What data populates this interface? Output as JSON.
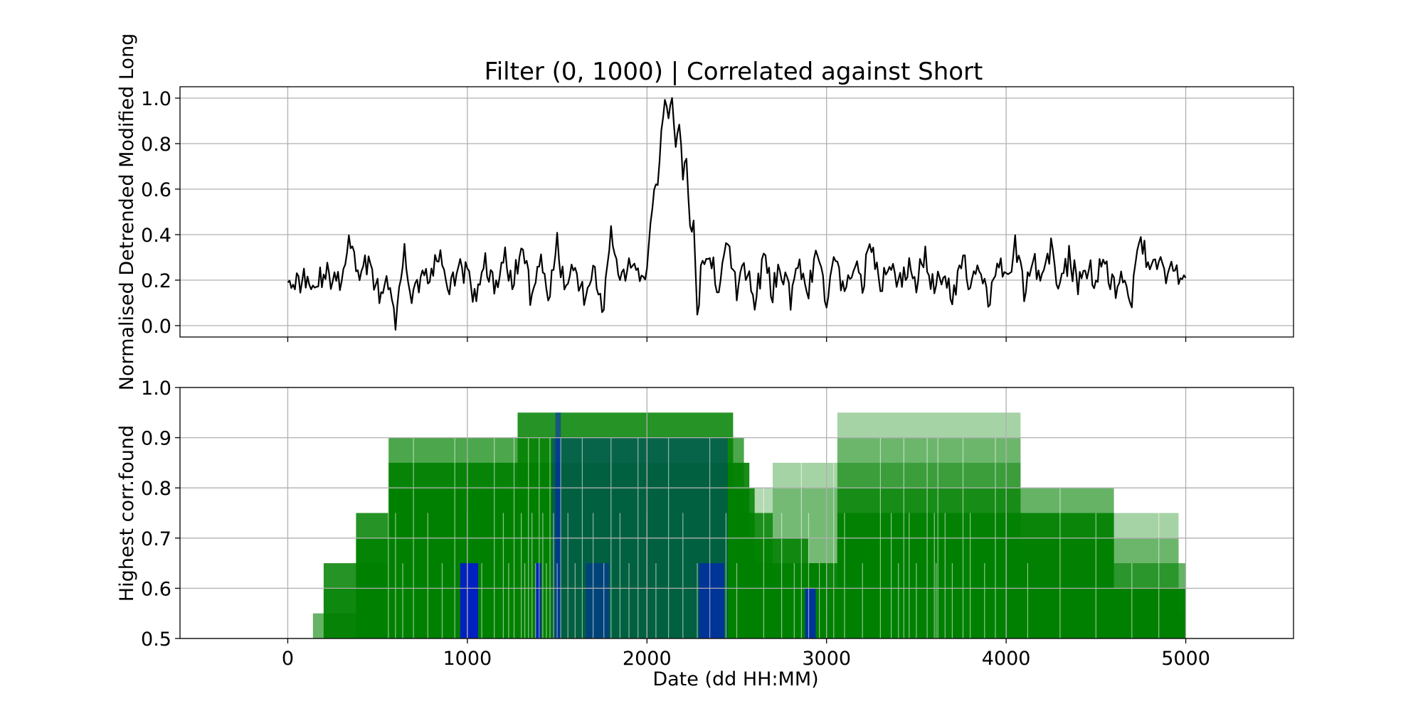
{
  "chart_data": [
    {
      "type": "line",
      "title": "Filter (0, 1000) | Correlated against Short",
      "ylabel": "Normalised Detrended Modified Long",
      "xlabel": "",
      "xlim": [
        -600,
        5600
      ],
      "ylim": [
        -0.05,
        1.05
      ],
      "xticks": [
        0,
        1000,
        2000,
        3000,
        4000,
        5000
      ],
      "xtick_labels": [
        "",
        "",
        "",
        "",
        "",
        ""
      ],
      "yticks": [
        0.0,
        0.2,
        0.4,
        0.6,
        0.8,
        1.0
      ],
      "ytick_labels": [
        "0.0",
        "0.2",
        "0.4",
        "0.6",
        "0.8",
        "1.0"
      ],
      "grid": true,
      "line_color": "#000000",
      "series": [
        {
          "values_per_step": 10,
          "x": [
            0,
            50,
            100,
            150,
            200,
            250,
            300,
            350,
            400,
            450,
            500,
            550,
            600,
            650,
            700,
            750,
            800,
            850,
            900,
            950,
            1000,
            1050,
            1100,
            1150,
            1200,
            1250,
            1300,
            1350,
            1400,
            1450,
            1500,
            1550,
            1600,
            1650,
            1700,
            1750,
            1800,
            1850,
            1900,
            1950,
            2000,
            2020,
            2040,
            2060,
            2080,
            2100,
            2120,
            2140,
            2160,
            2180,
            2200,
            2220,
            2240,
            2260,
            2280,
            2300,
            2350,
            2400,
            2450,
            2500,
            2550,
            2600,
            2650,
            2700,
            2750,
            2800,
            2850,
            2900,
            2950,
            3000,
            3050,
            3100,
            3150,
            3200,
            3250,
            3300,
            3350,
            3400,
            3450,
            3500,
            3550,
            3600,
            3650,
            3700,
            3750,
            3800,
            3850,
            3900,
            3950,
            4000,
            4050,
            4100,
            4150,
            4200,
            4250,
            4300,
            4350,
            4400,
            4450,
            4500,
            4550,
            4600,
            4650,
            4700,
            4750,
            4800,
            4850,
            4900,
            4950,
            5000
          ],
          "y": [
            0.25,
            0.18,
            0.22,
            0.16,
            0.24,
            0.2,
            0.18,
            0.38,
            0.22,
            0.3,
            0.15,
            0.18,
            0.02,
            0.3,
            0.12,
            0.25,
            0.2,
            0.34,
            0.12,
            0.28,
            0.22,
            0.1,
            0.3,
            0.15,
            0.32,
            0.18,
            0.34,
            0.15,
            0.3,
            0.12,
            0.35,
            0.15,
            0.28,
            0.1,
            0.3,
            0.05,
            0.38,
            0.15,
            0.3,
            0.22,
            0.24,
            0.4,
            0.6,
            0.63,
            0.85,
            0.98,
            0.92,
            1.0,
            0.8,
            0.9,
            0.65,
            0.75,
            0.4,
            0.46,
            0.06,
            0.22,
            0.3,
            0.18,
            0.38,
            0.15,
            0.24,
            0.12,
            0.28,
            0.16,
            0.25,
            0.12,
            0.28,
            0.15,
            0.32,
            0.1,
            0.3,
            0.15,
            0.28,
            0.2,
            0.36,
            0.14,
            0.3,
            0.18,
            0.25,
            0.2,
            0.32,
            0.15,
            0.26,
            0.12,
            0.3,
            0.18,
            0.24,
            0.1,
            0.28,
            0.18,
            0.36,
            0.15,
            0.28,
            0.2,
            0.35,
            0.16,
            0.3,
            0.18,
            0.26,
            0.2,
            0.3,
            0.16,
            0.24,
            0.12,
            0.39,
            0.2,
            0.3,
            0.22,
            0.24,
            0.21
          ]
        }
      ]
    },
    {
      "type": "bar",
      "title": "",
      "ylabel": "Highest corr.found",
      "xlabel": "Date (dd HH:MM)",
      "xlim": [
        -600,
        5600
      ],
      "ylim": [
        0.5,
        1.0
      ],
      "xticks": [
        0,
        1000,
        2000,
        3000,
        4000,
        5000
      ],
      "xtick_labels": [
        "0",
        "1000",
        "2000",
        "3000",
        "4000",
        "5000"
      ],
      "yticks": [
        0.5,
        0.6,
        0.7,
        0.8,
        0.9,
        1.0
      ],
      "ytick_labels": [
        "0.5",
        "0.6",
        "0.7",
        "0.8",
        "0.9",
        "1.0"
      ],
      "grid": true,
      "colors": {
        "green": "#008000",
        "blue": "#0000ff"
      },
      "bars": [
        {
          "x0": 3060,
          "x1": 4080,
          "y": 0.95,
          "color": "green",
          "alpha": 0.35
        },
        {
          "x0": 3060,
          "x1": 4080,
          "y": 0.9,
          "color": "green",
          "alpha": 0.35
        },
        {
          "x0": 3060,
          "x1": 4080,
          "y": 0.85,
          "color": "green",
          "alpha": 0.45
        },
        {
          "x0": 2700,
          "x1": 3060,
          "y": 0.85,
          "color": "green",
          "alpha": 0.35
        },
        {
          "x0": 2600,
          "x1": 3060,
          "y": 0.8,
          "color": "green",
          "alpha": 0.3
        },
        {
          "x0": 3060,
          "x1": 4600,
          "y": 0.8,
          "color": "green",
          "alpha": 0.6
        },
        {
          "x0": 4600,
          "x1": 4960,
          "y": 0.75,
          "color": "green",
          "alpha": 0.35
        },
        {
          "x0": 4600,
          "x1": 4960,
          "y": 0.7,
          "color": "green",
          "alpha": 0.35
        },
        {
          "x0": 4600,
          "x1": 5000,
          "y": 0.65,
          "color": "green",
          "alpha": 0.6
        },
        {
          "x0": 4600,
          "x1": 5000,
          "y": 0.6,
          "color": "green",
          "alpha": 0.8
        },
        {
          "x0": 3060,
          "x1": 4600,
          "y": 0.75,
          "color": "green",
          "alpha": 0.9
        },
        {
          "x0": 3060,
          "x1": 4600,
          "y": 0.7,
          "color": "green",
          "alpha": 0.9
        },
        {
          "x0": 2900,
          "x1": 3200,
          "y": 0.65,
          "color": "green",
          "alpha": 0.9
        },
        {
          "x0": 3000,
          "x1": 5000,
          "y": 0.6,
          "color": "green",
          "alpha": 0.9
        },
        {
          "x0": 3700,
          "x1": 5000,
          "y": 0.55,
          "color": "green",
          "alpha": 0.9
        },
        {
          "x0": 1280,
          "x1": 2480,
          "y": 0.95,
          "color": "green",
          "alpha": 0.85
        },
        {
          "x0": 560,
          "x1": 2540,
          "y": 0.9,
          "color": "green",
          "alpha": 0.7
        },
        {
          "x0": 560,
          "x1": 2570,
          "y": 0.85,
          "color": "green",
          "alpha": 0.9
        },
        {
          "x0": 560,
          "x1": 2600,
          "y": 0.8,
          "color": "green",
          "alpha": 0.9
        },
        {
          "x0": 380,
          "x1": 2700,
          "y": 0.75,
          "color": "green",
          "alpha": 0.85
        },
        {
          "x0": 380,
          "x1": 2900,
          "y": 0.7,
          "color": "green",
          "alpha": 0.85
        },
        {
          "x0": 200,
          "x1": 3000,
          "y": 0.65,
          "color": "green",
          "alpha": 0.85
        },
        {
          "x0": 200,
          "x1": 3000,
          "y": 0.6,
          "color": "green",
          "alpha": 0.6
        },
        {
          "x0": 140,
          "x1": 3060,
          "y": 0.55,
          "color": "green",
          "alpha": 0.6
        },
        {
          "x0": 1470,
          "x1": 2450,
          "y": 0.9,
          "color": "blue",
          "alpha": 0.25
        },
        {
          "x0": 960,
          "x1": 1060,
          "y": 0.65,
          "color": "blue",
          "alpha": 0.75
        },
        {
          "x0": 1660,
          "x1": 1790,
          "y": 0.65,
          "color": "blue",
          "alpha": 0.3
        },
        {
          "x0": 2290,
          "x1": 2430,
          "y": 0.65,
          "color": "blue",
          "alpha": 0.45
        },
        {
          "x0": 2880,
          "x1": 2940,
          "y": 0.6,
          "color": "blue",
          "alpha": 0.6
        },
        {
          "x0": 1380,
          "x1": 1410,
          "y": 0.65,
          "color": "blue",
          "alpha": 0.7
        },
        {
          "x0": 1490,
          "x1": 1520,
          "y": 0.95,
          "color": "blue",
          "alpha": 0.4
        }
      ],
      "separators": [
        560,
        600,
        640,
        700,
        780,
        860,
        930,
        1000,
        1080,
        1150,
        1200,
        1230,
        1260,
        1300,
        1320,
        1340,
        1360,
        1380,
        1400,
        1420,
        1440,
        1460,
        1480,
        1500,
        1520,
        1560,
        1600,
        1640,
        1700,
        1760,
        1800,
        1850,
        1900,
        1950,
        2000,
        2050,
        2120,
        2200,
        2280,
        2350,
        2440,
        2500,
        2650,
        2750,
        2820,
        2860,
        2900,
        2960,
        3040,
        3100,
        3200,
        3300,
        3360,
        3400,
        3430,
        3460,
        3500,
        3560,
        3600,
        3610,
        3620,
        3660,
        3700,
        3760,
        3800,
        3880,
        3940,
        4000,
        4120,
        4300,
        4500,
        4700,
        4850
      ]
    }
  ]
}
